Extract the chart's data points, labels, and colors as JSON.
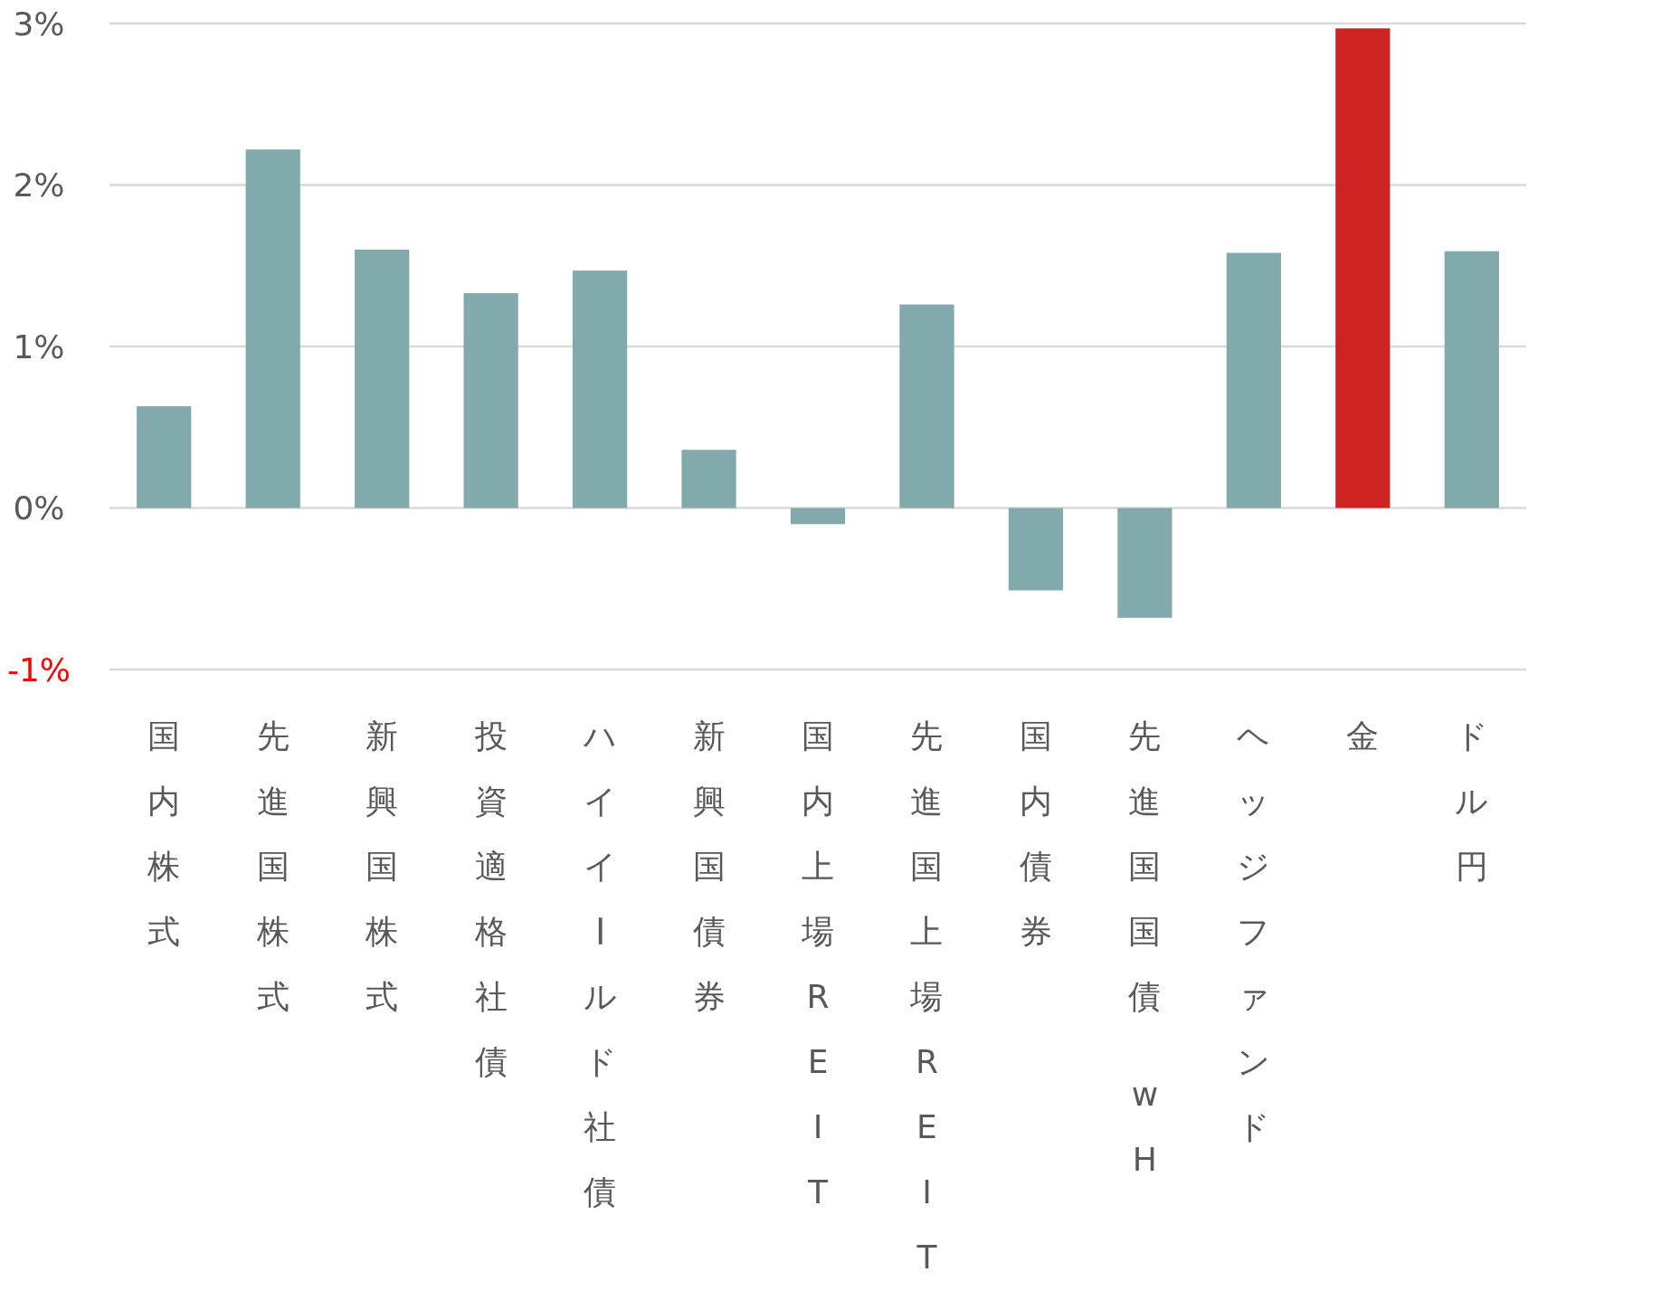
{
  "chart_data": {
    "type": "bar",
    "categories": [
      "国内株式",
      "先進国株式",
      "新興国株式",
      "投資適格社債",
      "ハイイールド社債",
      "新興国債券",
      "国内上場REIT",
      "先進国上場REIT",
      "国内債券",
      "先進国国債 wH",
      "ヘッジファンド",
      "金",
      "ドル円"
    ],
    "values": [
      0.63,
      2.22,
      1.6,
      1.33,
      1.47,
      0.36,
      -0.1,
      1.26,
      -0.51,
      -0.68,
      1.58,
      2.97,
      1.59
    ],
    "colors": [
      "#82a9ac",
      "#82a9ac",
      "#82a9ac",
      "#82a9ac",
      "#82a9ac",
      "#82a9ac",
      "#82a9ac",
      "#82a9ac",
      "#82a9ac",
      "#82a9ac",
      "#82a9ac",
      "#cc2222",
      "#82a9ac"
    ],
    "ylim": [
      -1,
      3
    ],
    "yticks": [
      {
        "value": -1,
        "label": "-1%"
      },
      {
        "value": 0,
        "label": "0%"
      },
      {
        "value": 1,
        "label": "1%"
      },
      {
        "value": 2,
        "label": "2%"
      },
      {
        "value": 3,
        "label": "3%"
      }
    ],
    "grid": "y"
  }
}
